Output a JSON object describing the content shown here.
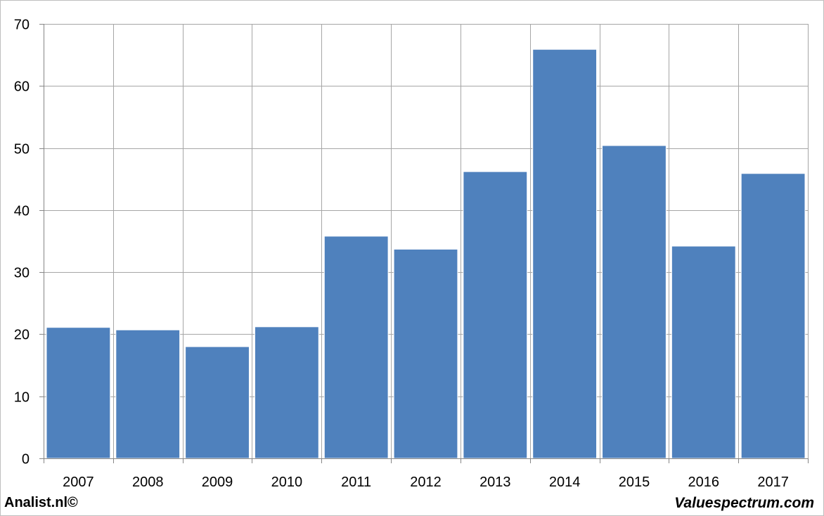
{
  "chart_data": {
    "type": "bar",
    "categories": [
      "2007",
      "2008",
      "2009",
      "2010",
      "2011",
      "2012",
      "2013",
      "2014",
      "2015",
      "2016",
      "2017"
    ],
    "values": [
      21.1,
      20.7,
      18.0,
      21.2,
      35.8,
      33.7,
      46.2,
      65.9,
      50.4,
      34.2,
      45.9
    ],
    "ylim": [
      0,
      70
    ],
    "yticks": [
      0,
      10,
      20,
      30,
      40,
      50,
      60,
      70
    ],
    "grid": true,
    "bar_color": "#4f81bd",
    "grid_color": "#a6a6a6"
  },
  "footer": {
    "left": "Analist.nl©",
    "right": "Valuespectrum.com"
  }
}
